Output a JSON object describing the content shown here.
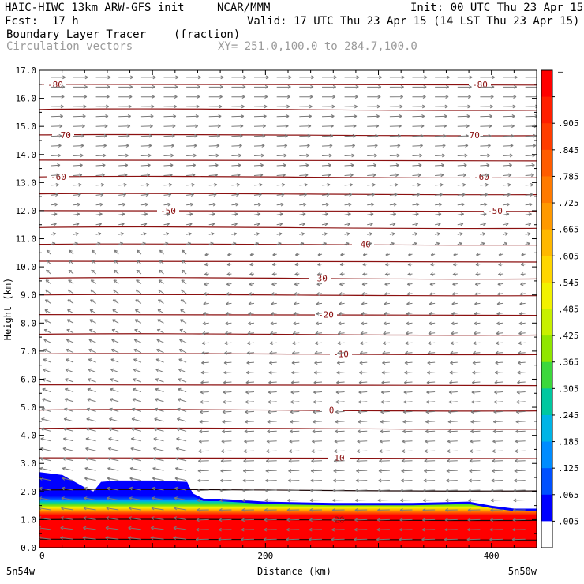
{
  "header": {
    "model": "HAIC-HIWC 13km ARW-GFS init",
    "org": "NCAR/MMM",
    "init": "Init: 00 UTC Thu 23 Apr 15",
    "fcst_label": "Fcst:",
    "fcst_value": "17 h",
    "valid": "Valid: 17 UTC Thu 23 Apr 15 (14 LST Thu 23 Apr 15)",
    "field": "Boundary Layer Tracer",
    "units": "(fraction)",
    "vectors": "Circulation vectors",
    "xsec": "XY= 251.0,100.0 to 284.7,100.0"
  },
  "chart_data": {
    "type": "heatmap",
    "title": "Boundary Layer Tracer",
    "xlabel": "Distance (km)",
    "ylabel": "Height (km)",
    "xlim": [
      0,
      440
    ],
    "ylim": [
      0,
      17
    ],
    "x_ticks": [
      {
        "value": 0,
        "label": "0"
      },
      {
        "value": 200,
        "label": "200"
      },
      {
        "value": 400,
        "label": "400"
      }
    ],
    "y_ticks": [
      "0.0",
      "1.0",
      "2.0",
      "3.0",
      "4.0",
      "5.0",
      "6.0",
      "7.0",
      "8.0",
      "9.0",
      "10.0",
      "11.0",
      "12.0",
      "13.0",
      "14.0",
      "15.0",
      "16.0",
      "17.0"
    ],
    "x_end_labels": {
      "left": "5n54w",
      "right": "5n50w"
    },
    "colorbar": {
      "labels": [
        "–",
        ".905",
        ".845",
        ".785",
        ".725",
        ".665",
        ".605",
        ".545",
        ".485",
        ".425",
        ".365",
        ".305",
        ".245",
        ".185",
        ".125",
        ".065",
        ".005"
      ],
      "colors": [
        "#ff0000",
        "#ff1f00",
        "#ff3d00",
        "#ff5c00",
        "#ff7a00",
        "#ff9900",
        "#ffb800",
        "#ffd600",
        "#f2f200",
        "#c8f000",
        "#90e600",
        "#3cd83c",
        "#00c8a0",
        "#00b4e6",
        "#008cff",
        "#0050ff",
        "#0000ff",
        "#ffffff"
      ]
    },
    "tracer_top_km": {
      "x": [
        0,
        20,
        40,
        48,
        55,
        70,
        100,
        130,
        135,
        145,
        160,
        200,
        260,
        330,
        380,
        400,
        420,
        440
      ],
      "y": [
        2.65,
        2.55,
        2.1,
        1.95,
        2.3,
        2.35,
        2.35,
        2.3,
        1.9,
        1.7,
        1.7,
        1.6,
        1.55,
        1.55,
        1.6,
        1.45,
        1.35,
        1.35
      ]
    },
    "isotherms_C": [
      {
        "label": "-80",
        "height_km": 16.5
      },
      {
        "label": "-70",
        "height_km": 14.7
      },
      {
        "label": "-60",
        "height_km": 13.2
      },
      {
        "label": "-50",
        "height_km": 12.0
      },
      {
        "label": "-40",
        "height_km": 10.8
      },
      {
        "label": "-30",
        "height_km": 9.6
      },
      {
        "label": "-20",
        "height_km": 8.3
      },
      {
        "label": "-10",
        "height_km": 6.9
      },
      {
        "label": "0",
        "height_km": 4.9
      },
      {
        "label": "10",
        "height_km": 3.2
      },
      {
        "label": "20",
        "height_km": 1.0
      }
    ],
    "contour_levels_km": [
      0.3,
      1.0,
      2.05,
      3.2,
      4.25,
      4.9,
      5.8,
      6.9,
      7.6,
      8.3,
      9.0,
      9.6,
      10.2,
      10.8,
      11.4,
      12.0,
      12.6,
      13.2,
      13.8,
      14.7,
      15.6,
      16.5
    ],
    "vectors": {
      "upper_direction": "east",
      "lower_direction": "west",
      "reversal_height_km": 10.5
    }
  }
}
